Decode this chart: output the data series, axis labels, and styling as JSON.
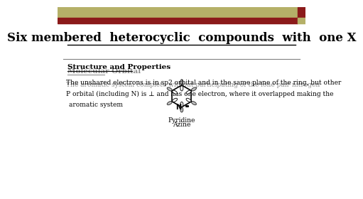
{
  "title": "Six membered  heterocyclic  compounds  with  one X",
  "bg_color": "#ffffff",
  "header_bar_color1": "#b5b068",
  "header_bar_color2": "#8b1a1a",
  "structure_label1": "Pyridine",
  "structure_label2": "Azine",
  "section_title": "Structure and Properties",
  "section_title2": "Molecular Orbital",
  "line1": "The unshared electrons is in sp2 orbital and in the same plane of the ring, but other",
  "line1b": "The aromatic system complete without participating of the lone pair nitrogen",
  "line2": "P orbital (including N) is ⊥ and has one electron, where it overlapped making the",
  "line3": "aromatic system"
}
